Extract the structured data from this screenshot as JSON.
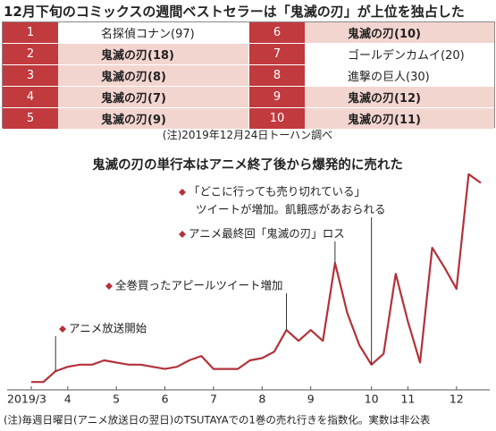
{
  "table": {
    "title": "12月下旬のコミックスの週間ベストセラーは「鬼滅の刃」が上位を独占した",
    "rows": [
      {
        "rank": 1,
        "title": "名探偵コナン(97)",
        "highlight": false
      },
      {
        "rank": 2,
        "title": "鬼滅の刃(18)",
        "highlight": true
      },
      {
        "rank": 3,
        "title": "鬼滅の刃(8)",
        "highlight": true
      },
      {
        "rank": 4,
        "title": "鬼滅の刃(7)",
        "highlight": true
      },
      {
        "rank": 5,
        "title": "鬼滅の刃(9)",
        "highlight": true
      },
      {
        "rank": 6,
        "title": "鬼滅の刃(10)",
        "highlight": true
      },
      {
        "rank": 7,
        "title": "ゴールデンカムイ(20)",
        "highlight": false
      },
      {
        "rank": 8,
        "title": "進撃の巨人(30)",
        "highlight": false
      },
      {
        "rank": 9,
        "title": "鬼滅の刃(12)",
        "highlight": true
      },
      {
        "rank": 10,
        "title": "鬼滅の刃(11)",
        "highlight": true
      }
    ],
    "note": "(注)2019年12月24日トーハン調べ"
  },
  "chart_data": {
    "type": "line",
    "title": "鬼滅の刃の単行本はアニメ終了後から爆発的に売れた",
    "categories": [
      "2019/3",
      null,
      null,
      "4",
      null,
      null,
      null,
      "5",
      null,
      null,
      null,
      "6",
      null,
      null,
      null,
      "7",
      null,
      null,
      null,
      "8",
      null,
      null,
      null,
      "9",
      null,
      null,
      null,
      null,
      "10",
      null,
      null,
      "11",
      null,
      null,
      null,
      "12",
      null,
      null
    ],
    "values": [
      2,
      2,
      7,
      9,
      10,
      10,
      12,
      11,
      10,
      10,
      9,
      8,
      9,
      12,
      14,
      8,
      8,
      8,
      12,
      13,
      16,
      26,
      21,
      26,
      21,
      57,
      34,
      19,
      10,
      15,
      52,
      30,
      11,
      64,
      55,
      45,
      98,
      94
    ],
    "color": "#b3313a",
    "ylim": [
      0,
      100
    ],
    "annotations": [
      [
        "アニメ放送開始"
      ],
      [
        "全巻買ったアピールツイート増加"
      ],
      [
        "アニメ最終回「鬼滅の刃」ロス"
      ],
      [
        "「どこに行っても売り切れている」",
        "ツイートが増加。飢餓感があおられる"
      ]
    ],
    "note": "(注)毎週日曜日(アニメ放送日の翌日)のTSUTAYAでの1巻の売れ行きを指数化。実数は非公表"
  }
}
